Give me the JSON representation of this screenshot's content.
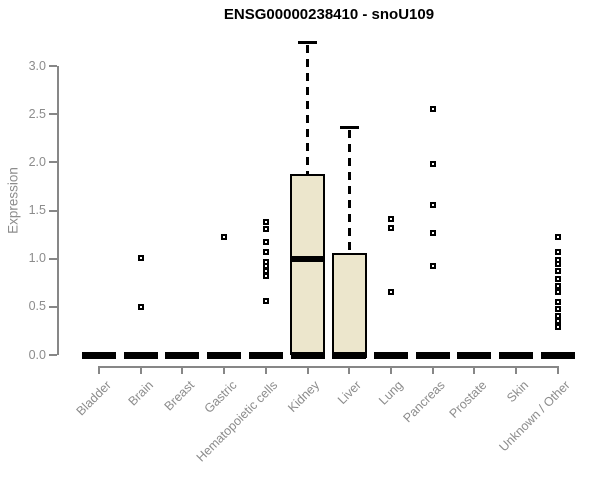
{
  "chart_data": {
    "type": "boxplot",
    "title": "ENSG00000238410 - snoU109",
    "xlabel": "",
    "ylabel": "Expression",
    "ylim": [
      0.0,
      3.3
    ],
    "yticks": [
      0.0,
      0.5,
      1.0,
      1.5,
      2.0,
      2.5,
      3.0
    ],
    "grid": false,
    "legend": "none",
    "categories": [
      "Bladder",
      "Brain",
      "Breast",
      "Gastric",
      "Hematopoietic cells",
      "Kidney",
      "Liver",
      "Lung",
      "Pancreas",
      "Prostate",
      "Skin",
      "Unknown / Other"
    ],
    "boxes": [
      {
        "category": "Bladder",
        "q1": 0,
        "median": 0,
        "q3": 0,
        "whisker_low": 0,
        "whisker_high": 0,
        "outliers": []
      },
      {
        "category": "Brain",
        "q1": 0,
        "median": 0,
        "q3": 0,
        "whisker_low": 0,
        "whisker_high": 0,
        "outliers": [
          1.01,
          0.5
        ]
      },
      {
        "category": "Breast",
        "q1": 0,
        "median": 0,
        "q3": 0,
        "whisker_low": 0,
        "whisker_high": 0,
        "outliers": []
      },
      {
        "category": "Gastric",
        "q1": 0,
        "median": 0,
        "q3": 0,
        "whisker_low": 0,
        "whisker_high": 0,
        "outliers": [
          1.22
        ]
      },
      {
        "category": "Hematopoietic cells",
        "q1": 0,
        "median": 0,
        "q3": 0,
        "whisker_low": 0,
        "whisker_high": 0,
        "outliers": [
          1.38,
          1.31,
          1.17,
          1.07,
          0.97,
          0.92,
          0.87,
          0.82,
          0.56
        ]
      },
      {
        "category": "Kidney",
        "q1": 0,
        "median": 1.0,
        "q3": 1.88,
        "whisker_low": 0,
        "whisker_high": 3.24,
        "outliers": []
      },
      {
        "category": "Liver",
        "q1": 0,
        "median": 0,
        "q3": 1.06,
        "whisker_low": 0,
        "whisker_high": 2.36,
        "outliers": []
      },
      {
        "category": "Lung",
        "q1": 0,
        "median": 0,
        "q3": 0,
        "whisker_low": 0,
        "whisker_high": 0,
        "outliers": [
          1.41,
          1.32,
          0.65
        ]
      },
      {
        "category": "Pancreas",
        "q1": 0,
        "median": 0,
        "q3": 0,
        "whisker_low": 0,
        "whisker_high": 0,
        "outliers": [
          2.55,
          1.98,
          1.56,
          1.27,
          0.92
        ]
      },
      {
        "category": "Prostate",
        "q1": 0,
        "median": 0,
        "q3": 0,
        "whisker_low": 0,
        "whisker_high": 0,
        "outliers": []
      },
      {
        "category": "Skin",
        "q1": 0,
        "median": 0,
        "q3": 0,
        "whisker_low": 0,
        "whisker_high": 0,
        "outliers": []
      },
      {
        "category": "Unknown / Other",
        "q1": 0,
        "median": 0,
        "q3": 0,
        "whisker_low": 0,
        "whisker_high": 0,
        "outliers": [
          1.23,
          1.07,
          0.99,
          0.94,
          0.87,
          0.79,
          0.72,
          0.65,
          0.55,
          0.48,
          0.41,
          0.35,
          0.29
        ]
      }
    ],
    "colors": {
      "box_fill": "#ECE6CC",
      "box_border": "#000000",
      "median": "#000000",
      "outlier_border": "#000000",
      "axis_text": "#8c8c8c",
      "axis_line": "#878787",
      "title": "#000000",
      "background": "#ffffff"
    }
  }
}
